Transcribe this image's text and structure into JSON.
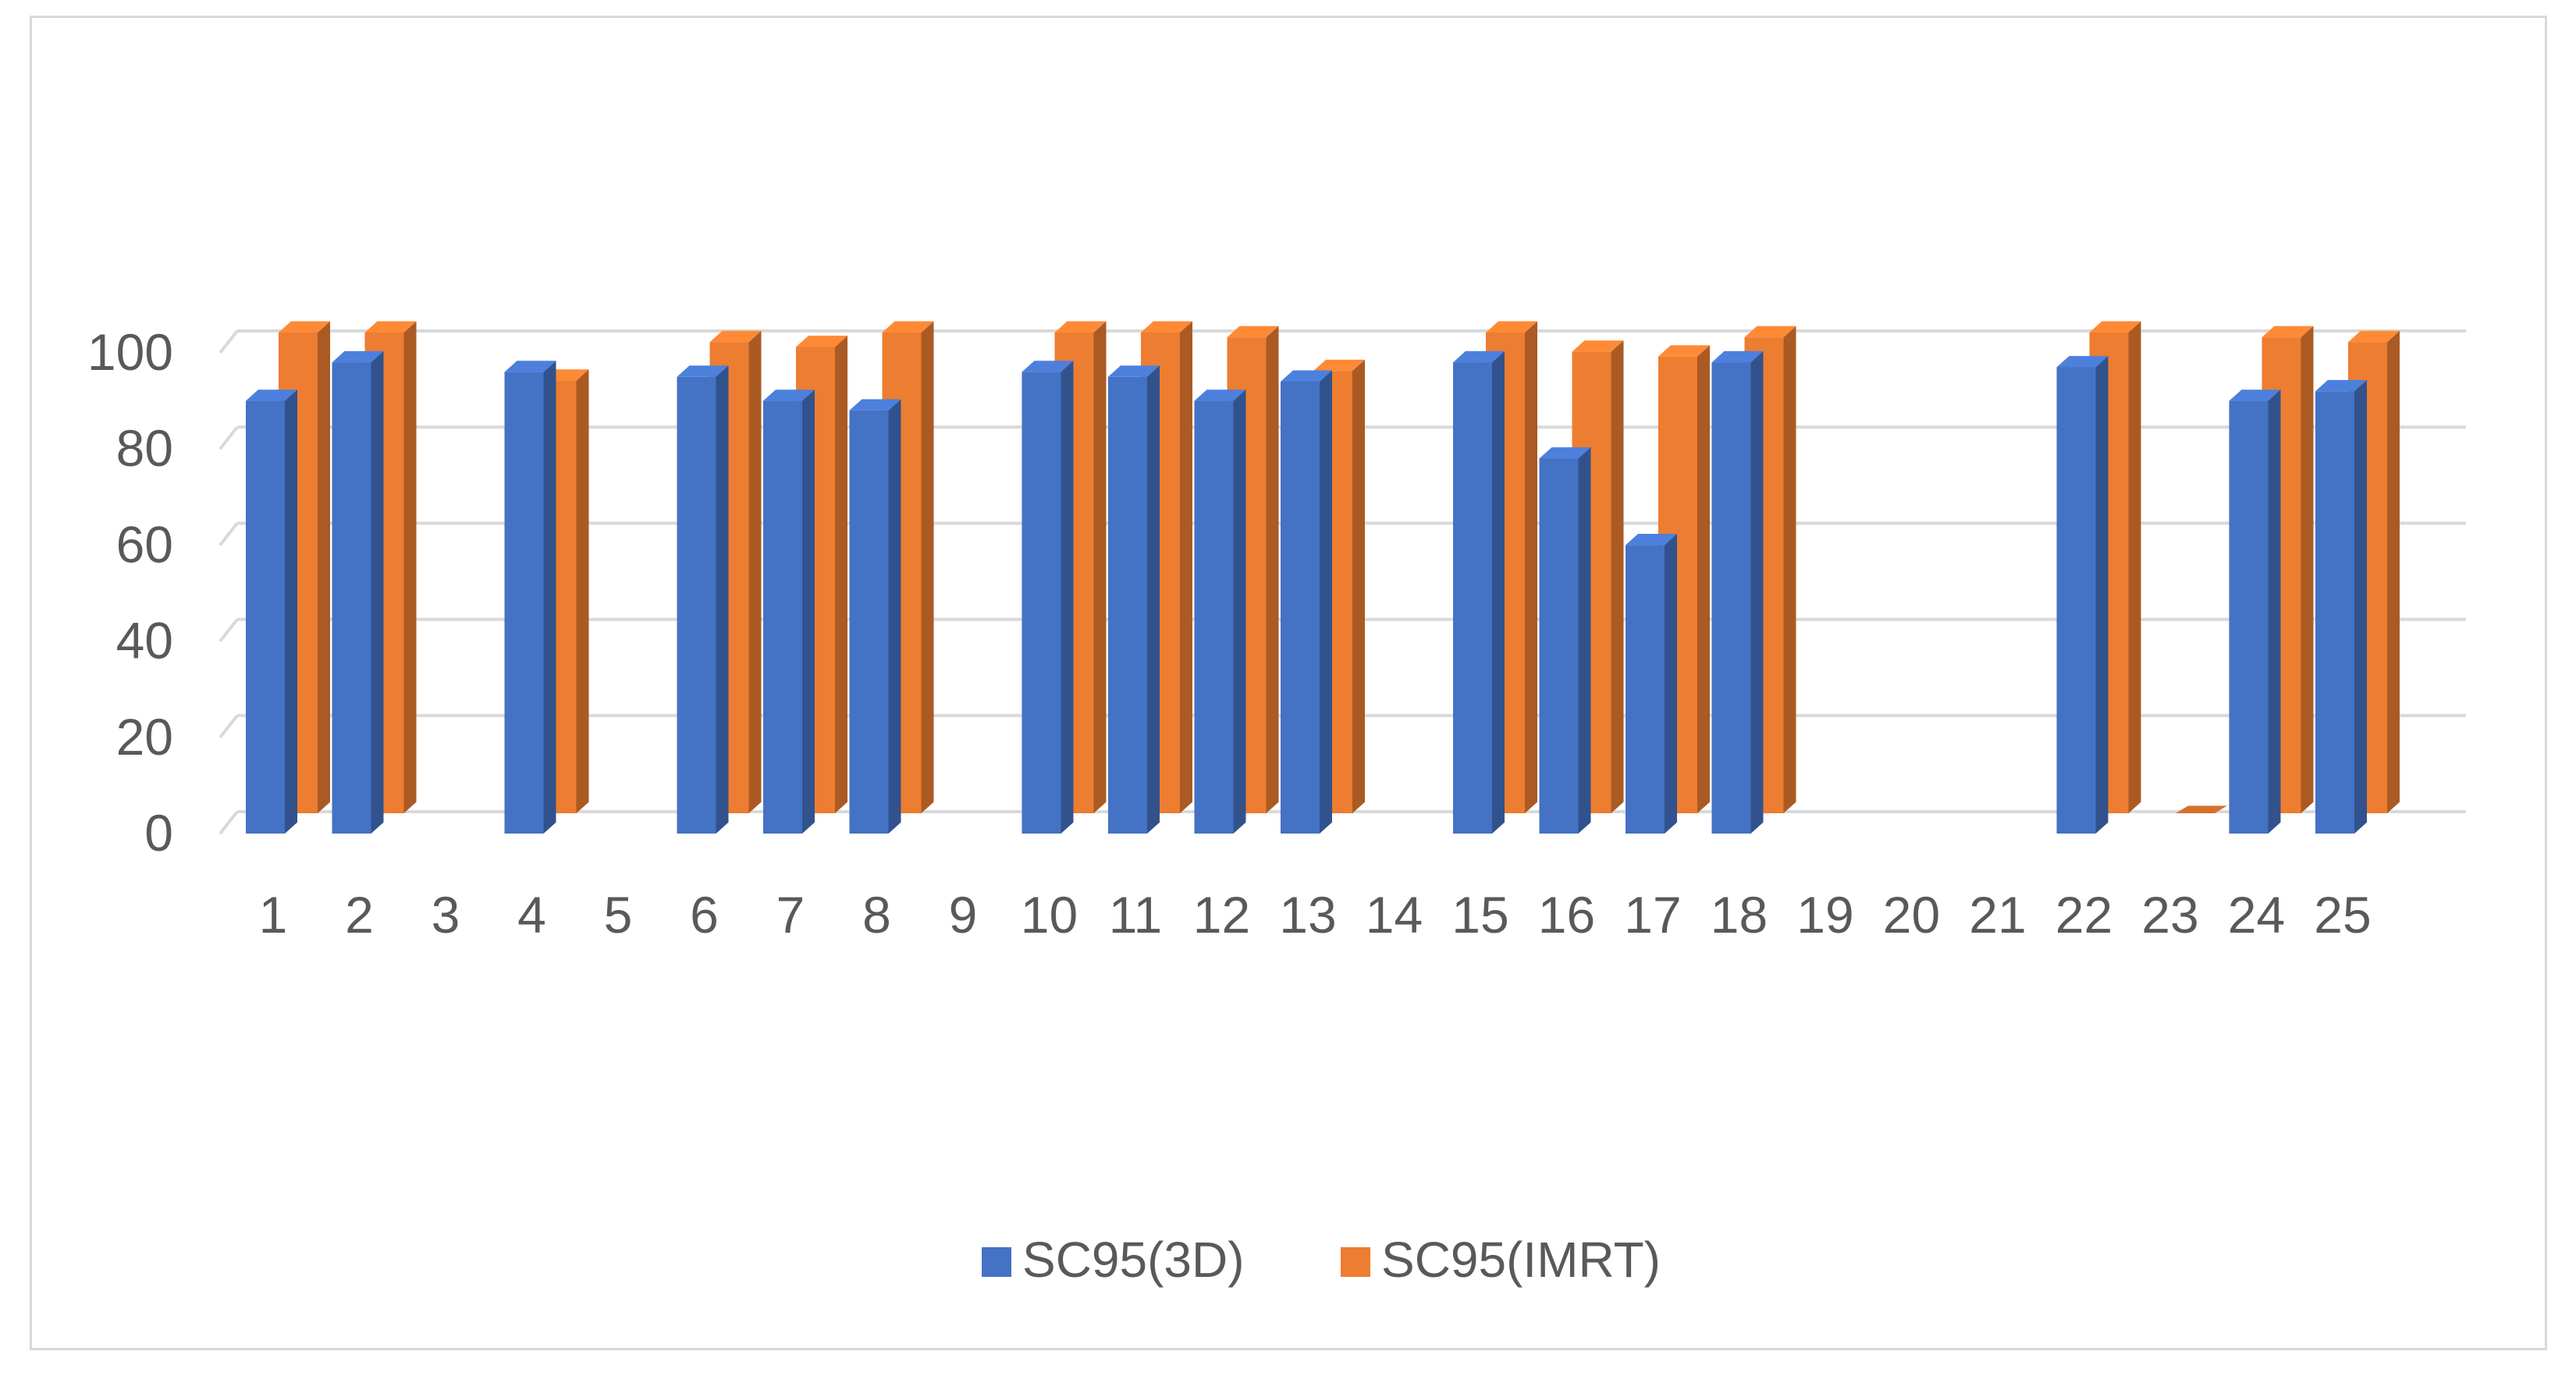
{
  "chart_data": {
    "type": "bar",
    "style": "3d-clustered-column",
    "title": "",
    "xlabel": "",
    "ylabel": "",
    "ylim": [
      0,
      100
    ],
    "yticks": [
      0,
      20,
      40,
      60,
      80,
      100
    ],
    "grid": true,
    "legend_position": "bottom",
    "categories": [
      "1",
      "2",
      "3",
      "4",
      "5",
      "6",
      "7",
      "8",
      "9",
      "10",
      "11",
      "12",
      "13",
      "14",
      "15",
      "16",
      "17",
      "18",
      "19",
      "20",
      "21",
      "22",
      "23",
      "24",
      "25"
    ],
    "series": [
      {
        "name": "SC95(3D)",
        "color": "#4472C4",
        "values": [
          90,
          98,
          null,
          96,
          null,
          95,
          90,
          88,
          null,
          96,
          95,
          90,
          94,
          null,
          98,
          78,
          60,
          98,
          null,
          null,
          null,
          97,
          null,
          90,
          92
        ]
      },
      {
        "name": "SC95(IMRT)",
        "color": "#ED7D31",
        "values": [
          100,
          100,
          null,
          90,
          null,
          98,
          97,
          100,
          null,
          100,
          100,
          99,
          92,
          null,
          100,
          96,
          95,
          99,
          null,
          null,
          null,
          100,
          0,
          99,
          98
        ]
      }
    ]
  }
}
